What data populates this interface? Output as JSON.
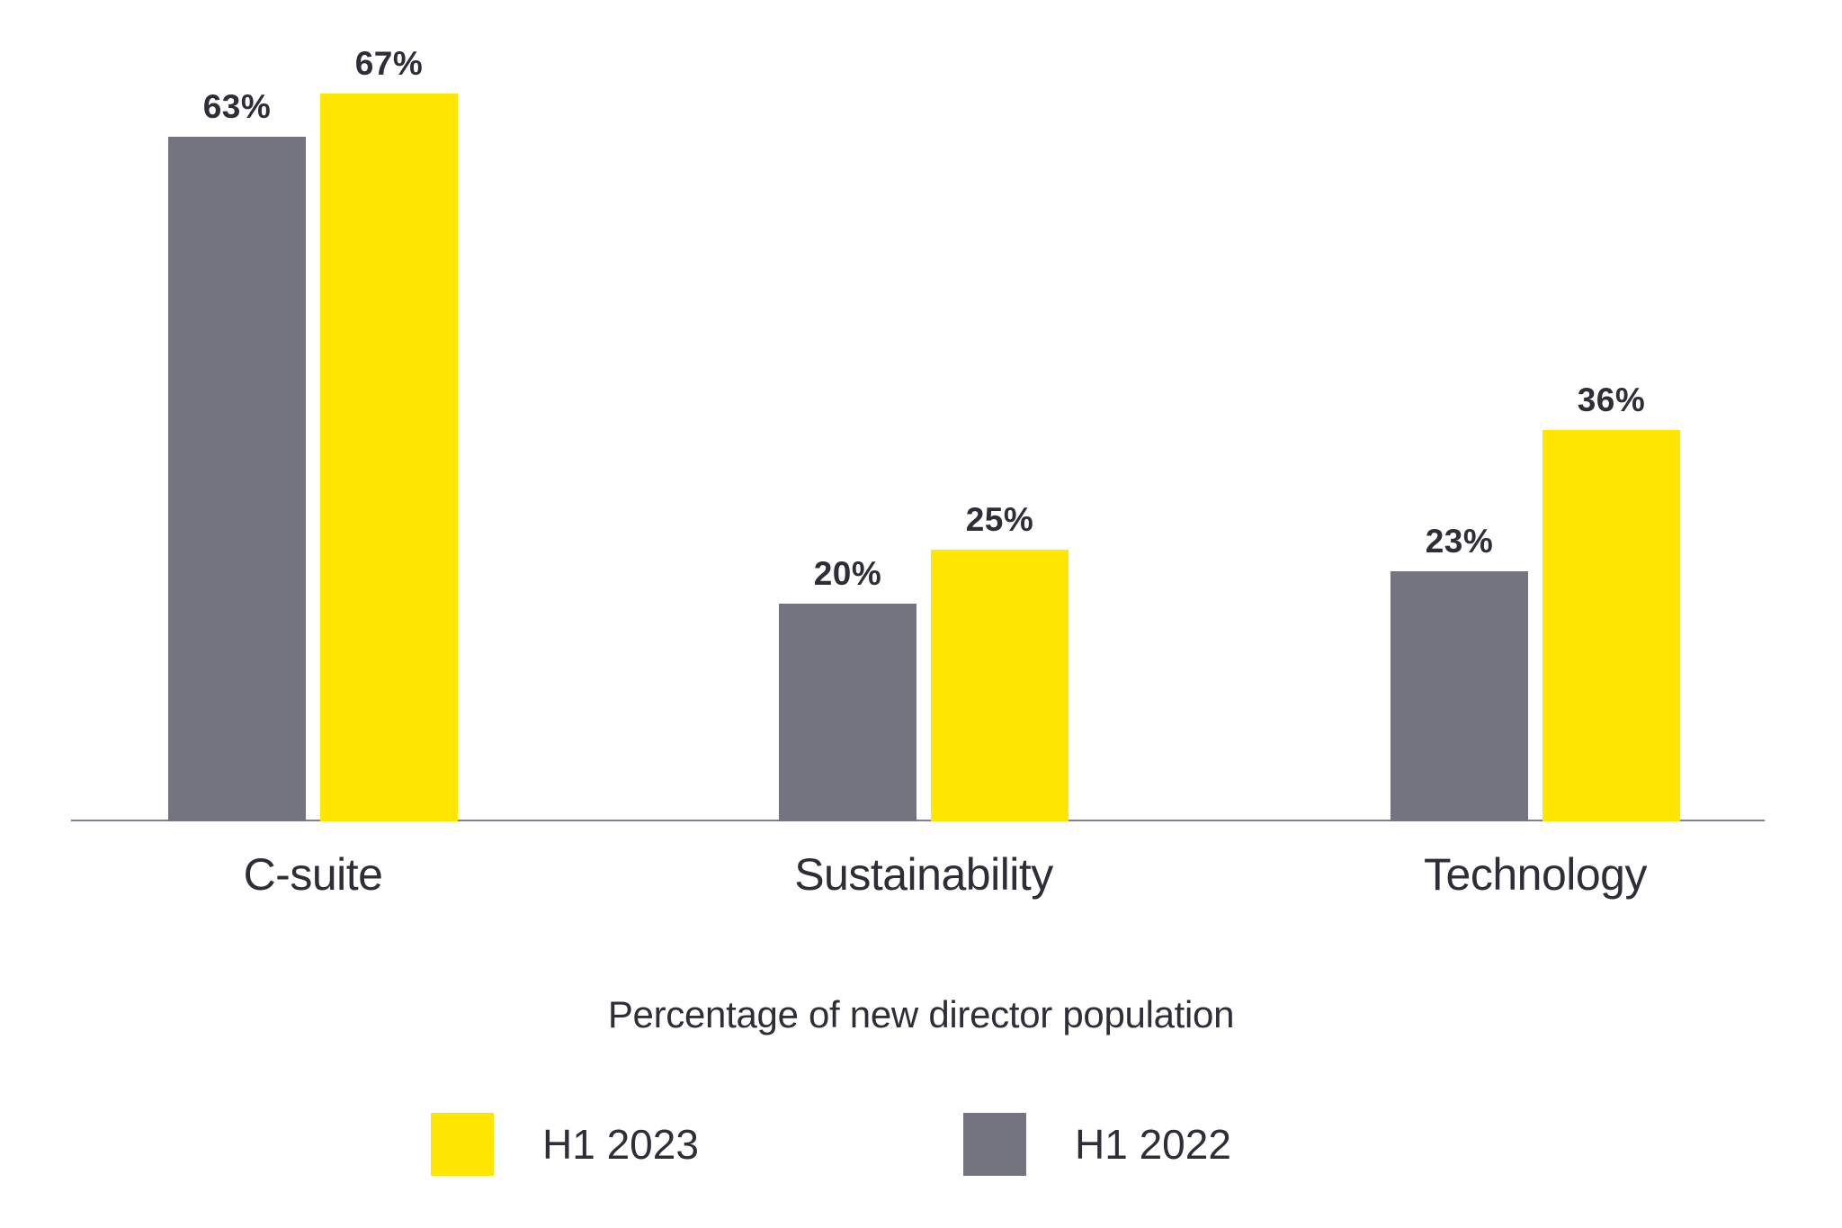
{
  "chart_data": {
    "type": "bar",
    "categories": [
      "C-suite",
      "Sustainability",
      "Technology"
    ],
    "series": [
      {
        "name": "H1 2022",
        "color": "#747480",
        "values": [
          63,
          20,
          23
        ]
      },
      {
        "name": "H1 2023",
        "color": "#FFE600",
        "values": [
          67,
          25,
          36
        ]
      }
    ],
    "value_suffix": "%",
    "caption": "Percentage of new director population",
    "ylim": [
      0,
      75
    ],
    "grid": false,
    "background": "#FFFFFF",
    "label_color": "#2E2E38",
    "axis_line_color": "#80808A",
    "legend": {
      "position": "bottom",
      "entries": [
        {
          "label": "H1 2023",
          "color": "#FFE600"
        },
        {
          "label": "H1 2022",
          "color": "#747480"
        }
      ]
    }
  }
}
